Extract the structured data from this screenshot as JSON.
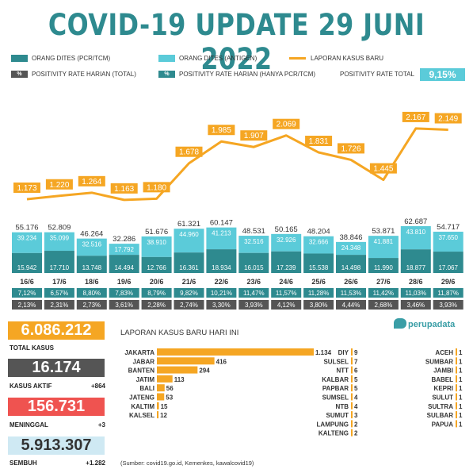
{
  "title": "COVID-19 UPDATE 29 JUNI 2022",
  "colors": {
    "pcr": "#2e8a8f",
    "antigen": "#5bcbd9",
    "cases": "#f5a623",
    "dark": "#555555",
    "red": "#ef5350",
    "lightblue": "#cfe9f3"
  },
  "legend": {
    "pcr": "ORANG DITES (PCR/TCM)",
    "antigen": "ORANG DITES (ANTIGEN)",
    "cases": "LAPORAN KASUS BARU",
    "pos_total": "POSITIVITY RATE HARIAN (TOTAL)",
    "pos_pcr": "POSITIVITY RATE HARIAN (HANYA PCR/TCM)",
    "pct": "%",
    "pos_overall_label": "POSITIVITY RATE TOTAL",
    "pos_overall_value": "9,15%"
  },
  "chart_data": {
    "type": "bar",
    "categories": [
      "16/6",
      "17/6",
      "18/6",
      "19/6",
      "20/6",
      "21/6",
      "22/6",
      "23/6",
      "24/6",
      "25/6",
      "26/6",
      "27/6",
      "28/6",
      "29/6"
    ],
    "series": [
      {
        "name": "ORANG DITES (PCR/TCM)",
        "values": [
          15942,
          17710,
          13748,
          14494,
          12766,
          16361,
          18934,
          16015,
          17239,
          15538,
          14498,
          11990,
          18877,
          17067
        ],
        "labels": [
          "15.942",
          "17.710",
          "13.748",
          "14.494",
          "12.766",
          "16.361",
          "18.934",
          "16.015",
          "17.239",
          "15.538",
          "14.498",
          "11.990",
          "18.877",
          "17.067"
        ]
      },
      {
        "name": "ORANG DITES (ANTIGEN)",
        "values": [
          39234,
          35099,
          32516,
          17792,
          38910,
          44960,
          41213,
          32516,
          32926,
          32666,
          24348,
          41881,
          43810,
          37650
        ],
        "labels": [
          "39.234",
          "35.099",
          "32.516",
          "17.792",
          "38.910",
          "44.960",
          "41.213",
          "32.516",
          "32.926",
          "32.666",
          "24.348",
          "41.881",
          "43.810",
          "37.650"
        ]
      },
      {
        "name": "LAPORAN KASUS BARU",
        "values": [
          1173,
          1220,
          1264,
          1163,
          1180,
          1678,
          1985,
          1907,
          2069,
          1831,
          1726,
          1445,
          2167,
          2149
        ],
        "labels": [
          "1.173",
          "1.220",
          "1.264",
          "1.163",
          "1.180",
          "1.678",
          "1.985",
          "1.907",
          "2.069",
          "1.831",
          "1.726",
          "1.445",
          "2.167",
          "2.149"
        ]
      }
    ],
    "totals": [
      "55.176",
      "52.809",
      "46.264",
      "32.286",
      "51.676",
      "61.321",
      "60.147",
      "48.531",
      "50.165",
      "48.204",
      "38.846",
      "53.871",
      "62.687",
      "54.717"
    ],
    "positivity_pcr": [
      "7,12%",
      "6,57%",
      "8,80%",
      "7,83%",
      "8,79%",
      "9,82%",
      "10,21%",
      "11,47%",
      "11,57%",
      "11,28%",
      "11,53%",
      "11,42%",
      "11,03%",
      "11,87%"
    ],
    "positivity_total": [
      "2,13%",
      "2,31%",
      "2,73%",
      "3,61%",
      "2,28%",
      "2,74%",
      "3,30%",
      "3,93%",
      "4,12%",
      "3,80%",
      "4,44%",
      "2,68%",
      "3,46%",
      "3,93%"
    ]
  },
  "stats": {
    "total": {
      "value": "6.086.212",
      "label": "TOTAL KASUS"
    },
    "active": {
      "value": "16.174",
      "label": "KASUS AKTIF",
      "delta": "+864"
    },
    "deaths": {
      "value": "156.731",
      "label": "MENINGGAL",
      "delta": "+3"
    },
    "recovered": {
      "value": "5.913.307",
      "label": "SEMBUH",
      "delta": "+1.282"
    }
  },
  "daily_title": "LAPORAN KASUS BARU HARI INI",
  "provinces_top": [
    {
      "name": "JAKARTA",
      "value": 1134,
      "label": "1.134"
    },
    {
      "name": "JABAR",
      "value": 416,
      "label": "416"
    },
    {
      "name": "BANTEN",
      "value": 294,
      "label": "294"
    },
    {
      "name": "JATIM",
      "value": 113,
      "label": "113"
    },
    {
      "name": "BALI",
      "value": 56,
      "label": "56"
    },
    {
      "name": "JATENG",
      "value": 53,
      "label": "53"
    },
    {
      "name": "KALTIM",
      "value": 15,
      "label": "15"
    },
    {
      "name": "KALSEL",
      "value": 12,
      "label": "12"
    }
  ],
  "provinces_mid": [
    {
      "name": "DIY",
      "value": 9,
      "label": "9"
    },
    {
      "name": "SULSEL",
      "value": 7,
      "label": "7"
    },
    {
      "name": "NTT",
      "value": 6,
      "label": "6"
    },
    {
      "name": "KALBAR",
      "value": 5,
      "label": "5"
    },
    {
      "name": "PAPBAR",
      "value": 5,
      "label": "5"
    },
    {
      "name": "SUMSEL",
      "value": 4,
      "label": "4"
    },
    {
      "name": "NTB",
      "value": 4,
      "label": "4"
    },
    {
      "name": "SUMUT",
      "value": 3,
      "label": "3"
    },
    {
      "name": "LAMPUNG",
      "value": 2,
      "label": "2"
    },
    {
      "name": "KALTENG",
      "value": 2,
      "label": "2"
    }
  ],
  "provinces_right": [
    {
      "name": "ACEH",
      "value": 1,
      "label": "1"
    },
    {
      "name": "SUMBAR",
      "value": 1,
      "label": "1"
    },
    {
      "name": "JAMBI",
      "value": 1,
      "label": "1"
    },
    {
      "name": "BABEL",
      "value": 1,
      "label": "1"
    },
    {
      "name": "KEPRI",
      "value": 1,
      "label": "1"
    },
    {
      "name": "SULUT",
      "value": 1,
      "label": "1"
    },
    {
      "name": "SULTRA",
      "value": 1,
      "label": "1"
    },
    {
      "name": "SULBAR",
      "value": 1,
      "label": "1"
    },
    {
      "name": "PAPUA",
      "value": 1,
      "label": "1"
    }
  ],
  "source": "(Sumber: covid19.go.id, Kemenkes, kawalcovid19)",
  "logo": "perupadata"
}
